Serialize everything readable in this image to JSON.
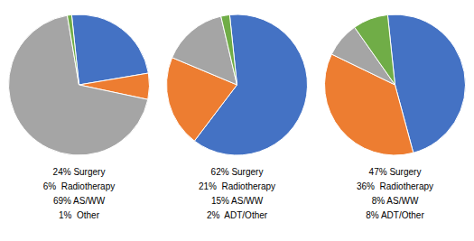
{
  "chart_data": [
    {
      "type": "pie",
      "categories": [
        "24% Surgery",
        "6%  Radiotherapy",
        "69% AS/WW",
        "1%  Other"
      ],
      "values": [
        24,
        6,
        69,
        1
      ],
      "colors": [
        "#4472C4",
        "#ED7D31",
        "#A5A5A5",
        "#70AD47"
      ]
    },
    {
      "type": "pie",
      "categories": [
        "62% Surgery",
        "21%  Radiotherapy",
        "15% AS/WW",
        "2%  ADT/Other"
      ],
      "values": [
        62,
        21,
        15,
        2
      ],
      "colors": [
        "#4472C4",
        "#ED7D31",
        "#A5A5A5",
        "#70AD47"
      ]
    },
    {
      "type": "pie",
      "categories": [
        "47% Surgery",
        "36%  Radiotherapy",
        "8% AS/WW",
        "8% ADT/Other"
      ],
      "values": [
        47,
        36,
        8,
        8
      ],
      "colors": [
        "#4472C4",
        "#ED7D31",
        "#A5A5A5",
        "#70AD47"
      ]
    }
  ]
}
